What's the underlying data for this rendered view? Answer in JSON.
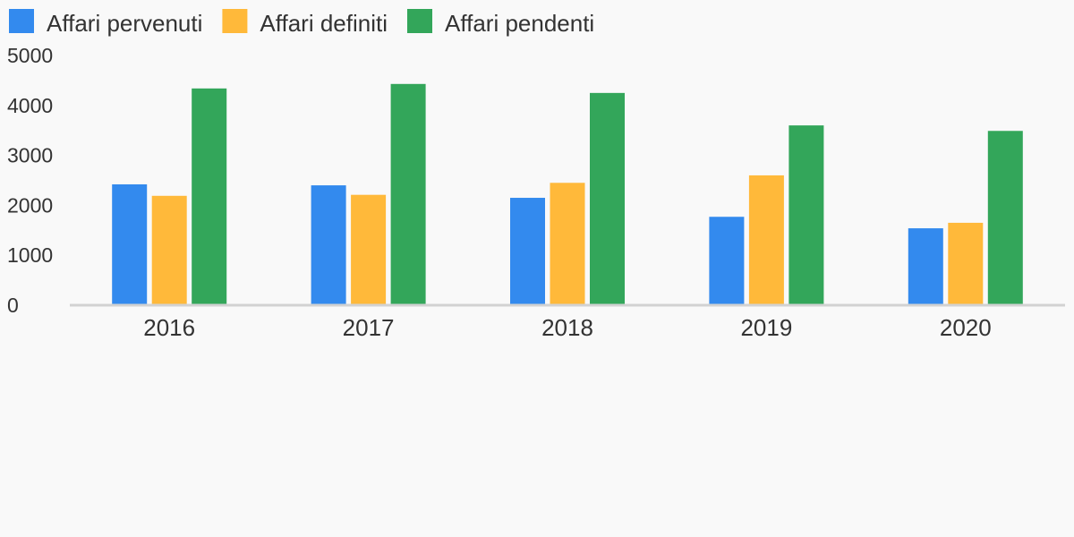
{
  "chart_data": {
    "type": "bar",
    "categories": [
      "2016",
      "2017",
      "2018",
      "2019",
      "2020"
    ],
    "series": [
      {
        "name": "Affari pervenuti",
        "color": "#338aee",
        "values": [
          2420,
          2400,
          2150,
          1770,
          1540
        ]
      },
      {
        "name": "Affari definiti",
        "color": "#ffb93a",
        "values": [
          2190,
          2210,
          2450,
          2600,
          1650
        ]
      },
      {
        "name": "Affari pendenti",
        "color": "#33a65a",
        "values": [
          4340,
          4430,
          4250,
          3600,
          3490
        ]
      }
    ],
    "ylim": [
      0,
      5000
    ],
    "yticks": [
      "0",
      "1000",
      "2000",
      "3000",
      "4000",
      "5000"
    ],
    "title": "",
    "xlabel": "",
    "ylabel": "",
    "legend_position": "top-left",
    "grid": false
  }
}
